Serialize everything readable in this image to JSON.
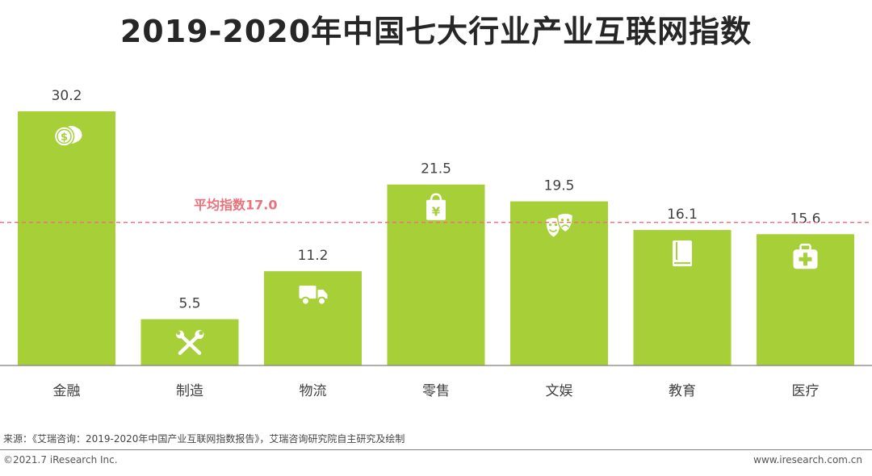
{
  "title": "2019-2020年中国七大行业产业互联网指数",
  "chart_data": {
    "type": "bar",
    "categories": [
      "金融",
      "制造",
      "物流",
      "零售",
      "文娱",
      "教育",
      "医疗"
    ],
    "values": [
      30.2,
      5.5,
      11.2,
      21.5,
      19.5,
      16.1,
      15.6
    ],
    "value_labels": [
      "30.2",
      "5.5",
      "11.2",
      "21.5",
      "19.5",
      "16.1",
      "15.6"
    ],
    "icons": [
      "coins-icon",
      "wrench-icon",
      "truck-icon",
      "shopping-bag-icon",
      "theater-masks-icon",
      "book-icon",
      "medical-kit-icon"
    ],
    "average": 17.0,
    "average_label": "平均指数17.0",
    "ylim": [
      0,
      30.2
    ],
    "xlabel": "",
    "ylabel": "",
    "colors": {
      "bar": "#a6cf38",
      "average": "#e8737b",
      "axis": "#7f7f7f",
      "label": "#404040"
    }
  },
  "footer": {
    "source": "来源：《艾瑞咨询：2019-2020年中国产业互联网指数报告》，艾瑞咨询研究院自主研究及绘制",
    "copyright": "©2021.7 iResearch Inc.",
    "website": "www.iresearch.com.cn"
  }
}
